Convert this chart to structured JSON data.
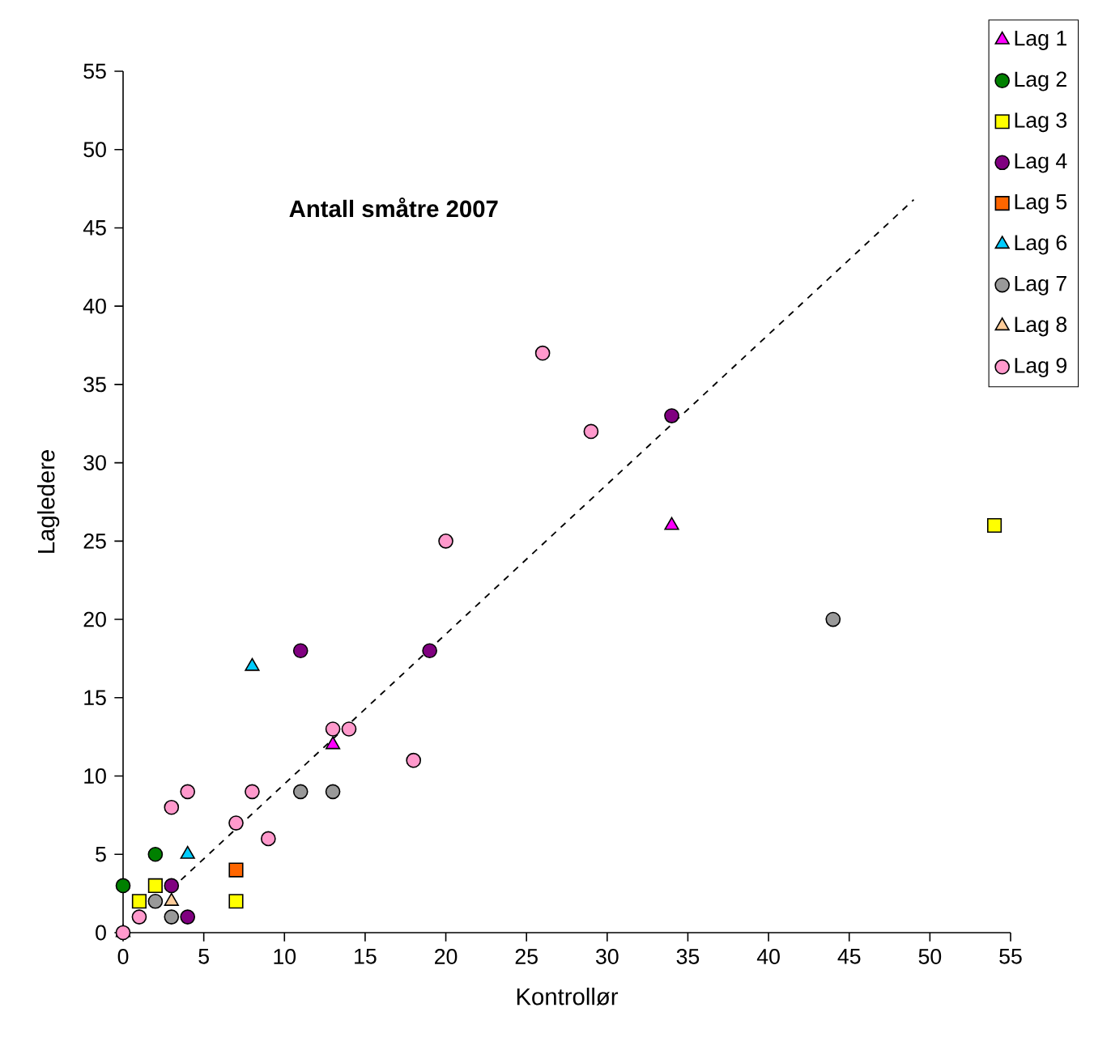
{
  "chart_data": {
    "type": "scatter",
    "title": "Antall småtre 2007",
    "xlabel": "Kontrollør",
    "ylabel": "Lagledere",
    "xlim": [
      0,
      55
    ],
    "ylim": [
      0,
      55
    ],
    "xticks": [
      0,
      5,
      10,
      15,
      20,
      25,
      30,
      35,
      40,
      45,
      50,
      55
    ],
    "yticks": [
      0,
      5,
      10,
      15,
      20,
      25,
      30,
      35,
      40,
      45,
      50,
      55
    ],
    "grid": false,
    "legend": "top right",
    "series": [
      {
        "name": "Lag 1",
        "color": "#ff00ff",
        "marker": "triangle",
        "x": [
          0,
          13,
          34
        ],
        "values": [
          0,
          12,
          26
        ]
      },
      {
        "name": "Lag 2",
        "color": "#008000",
        "marker": "circle",
        "x": [
          0,
          2
        ],
        "values": [
          3,
          5
        ]
      },
      {
        "name": "Lag 3",
        "color": "#ffff00",
        "marker": "square",
        "x": [
          1,
          2,
          7,
          54
        ],
        "values": [
          2,
          3,
          2,
          26
        ]
      },
      {
        "name": "Lag 4",
        "color": "#800080",
        "marker": "circle",
        "x": [
          3,
          4,
          11,
          19,
          34
        ],
        "values": [
          3,
          1,
          18,
          18,
          33
        ]
      },
      {
        "name": "Lag 5",
        "color": "#ff6600",
        "marker": "square",
        "x": [
          7
        ],
        "values": [
          4
        ]
      },
      {
        "name": "Lag 6",
        "color": "#00ccff",
        "marker": "triangle",
        "x": [
          4,
          8
        ],
        "values": [
          5,
          17
        ]
      },
      {
        "name": "Lag 7",
        "color": "#999999",
        "marker": "circle",
        "x": [
          2,
          3,
          11,
          13,
          44
        ],
        "values": [
          2,
          1,
          9,
          9,
          20
        ]
      },
      {
        "name": "Lag 8",
        "color": "#ffcc99",
        "marker": "triangle",
        "x": [
          3
        ],
        "values": [
          2
        ]
      },
      {
        "name": "Lag 9",
        "color": "#ff99cc",
        "marker": "circle",
        "x": [
          0,
          1,
          3,
          4,
          7,
          8,
          9,
          13,
          14,
          18,
          20,
          26,
          29
        ],
        "values": [
          0,
          1,
          8,
          9,
          7,
          9,
          6,
          13,
          13,
          11,
          25,
          37,
          32
        ]
      },
      {
        "type": "line",
        "color": "#000000",
        "marker": "none",
        "line_style": "dashed",
        "x": [
          3,
          49
        ],
        "values": [
          2.8,
          46.8
        ]
      }
    ]
  }
}
